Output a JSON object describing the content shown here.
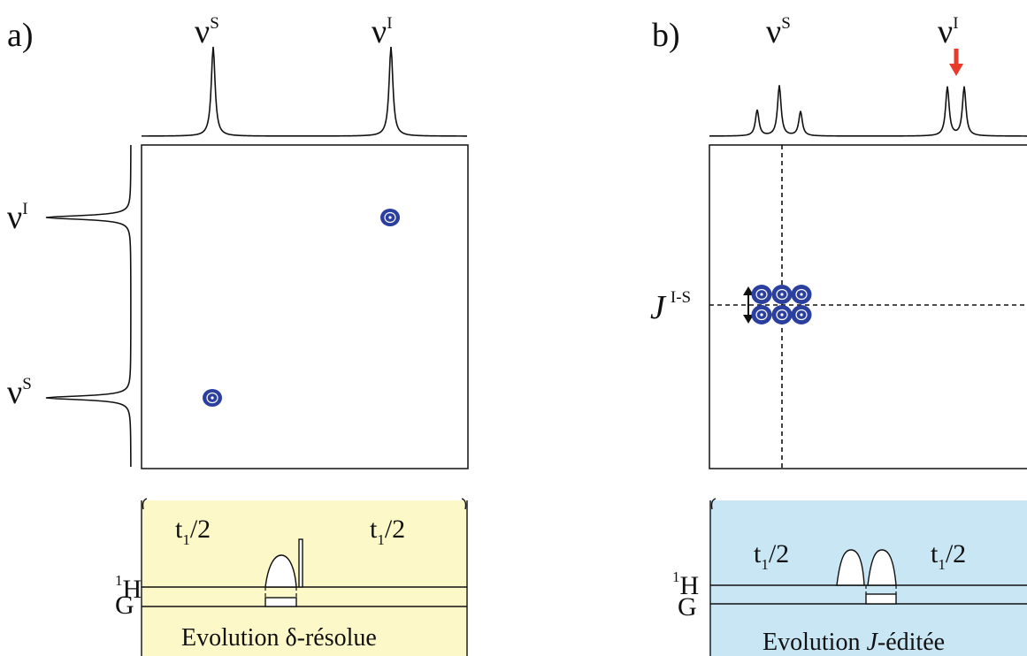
{
  "panel_a": {
    "letter": "a)",
    "top_labels": [
      {
        "base": "ν",
        "sup": "S"
      },
      {
        "base": "ν",
        "sup": "I"
      }
    ],
    "side_labels": [
      {
        "base": "ν",
        "sup": "I"
      },
      {
        "base": "ν",
        "sup": "S"
      }
    ],
    "sequence": {
      "background": "#fdf8c8",
      "t1_left": {
        "base": "t",
        "sub": "1",
        "tail": "/2"
      },
      "t1_right": {
        "base": "t",
        "sub": "1",
        "tail": "/2"
      },
      "row_h": {
        "sup": "1",
        "base": "H"
      },
      "row_g": "G",
      "caption": "Evolution δ-résolue"
    }
  },
  "panel_b": {
    "letter": "b)",
    "top_labels": [
      {
        "base": "ν",
        "sup": "S"
      },
      {
        "base": "ν",
        "sup": "I"
      }
    ],
    "coupling_label": {
      "base": "J",
      "sup": "I-S"
    },
    "sequence": {
      "background": "#c9e6f4",
      "t1_left": {
        "base": "t",
        "sub": "1",
        "tail": "/2"
      },
      "t1_right": {
        "base": "t",
        "sub": "1",
        "tail": "/2"
      },
      "row_h": {
        "sup": "1",
        "base": "H"
      },
      "row_g": "G",
      "caption_pre": "Evolution ",
      "caption_italic": "J",
      "caption_post": "-éditée"
    }
  },
  "colors": {
    "peak_blue": "#2a3f9e",
    "arrow_red": "#e8392a"
  }
}
